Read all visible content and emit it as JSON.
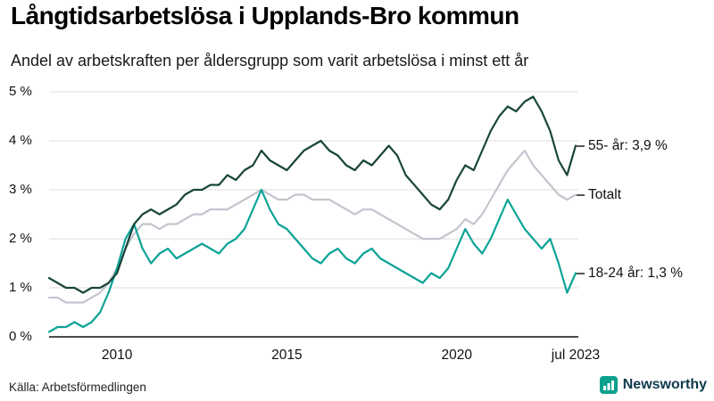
{
  "source": "Källa: Arbetsförmedlingen",
  "brand": {
    "name": "Newsworthy",
    "color": "#0ca08d",
    "text_color": "#0d3a4c"
  },
  "chart_data": {
    "type": "line",
    "title": "Långtidsarbetslösa i Upplands-Bro kommun",
    "subtitle": "Andel av arbetskraften per åldersgrupp som varit arbetslösa i minst ett år",
    "xlabel": "",
    "ylabel": "",
    "ylim": [
      0,
      5
    ],
    "xlim": [
      2008,
      2023.58
    ],
    "grid": "horizontal",
    "legend_position": "right-annotations",
    "y_ticks": [
      "0 %",
      "1 %",
      "2 %",
      "3 %",
      "4 %",
      "5 %"
    ],
    "x_ticks": [
      {
        "label": "2010",
        "x": 2010
      },
      {
        "label": "2015",
        "x": 2015
      },
      {
        "label": "2020",
        "x": 2020
      },
      {
        "label": "jul 2023",
        "x": 2023.5
      }
    ],
    "x": [
      2008,
      2008.25,
      2008.5,
      2008.75,
      2009,
      2009.25,
      2009.5,
      2009.75,
      2010,
      2010.25,
      2010.5,
      2010.75,
      2011,
      2011.25,
      2011.5,
      2011.75,
      2012,
      2012.25,
      2012.5,
      2012.75,
      2013,
      2013.25,
      2013.5,
      2013.75,
      2014,
      2014.25,
      2014.5,
      2014.75,
      2015,
      2015.25,
      2015.5,
      2015.75,
      2016,
      2016.25,
      2016.5,
      2016.75,
      2017,
      2017.25,
      2017.5,
      2017.75,
      2018,
      2018.25,
      2018.5,
      2018.75,
      2019,
      2019.25,
      2019.5,
      2019.75,
      2020,
      2020.25,
      2020.5,
      2020.75,
      2021,
      2021.25,
      2021.5,
      2021.75,
      2022,
      2022.25,
      2022.5,
      2022.75,
      2023,
      2023.25,
      2023.5
    ],
    "series": [
      {
        "name": "55- år",
        "label": "55- år: 3,9 %",
        "last_value_label": "3,9 %",
        "color": "#17453a",
        "values": [
          1.2,
          1.1,
          1.0,
          1.0,
          0.9,
          1.0,
          1.0,
          1.1,
          1.3,
          1.8,
          2.3,
          2.5,
          2.6,
          2.5,
          2.6,
          2.7,
          2.9,
          3.0,
          3.0,
          3.1,
          3.1,
          3.3,
          3.2,
          3.4,
          3.5,
          3.8,
          3.6,
          3.5,
          3.4,
          3.6,
          3.8,
          3.9,
          4.0,
          3.8,
          3.7,
          3.5,
          3.4,
          3.6,
          3.5,
          3.7,
          3.9,
          3.7,
          3.3,
          3.1,
          2.9,
          2.7,
          2.6,
          2.8,
          3.2,
          3.5,
          3.4,
          3.8,
          4.2,
          4.5,
          4.7,
          4.6,
          4.8,
          4.9,
          4.6,
          4.2,
          3.6,
          3.3,
          3.9
        ]
      },
      {
        "name": "Totalt",
        "label": "Totalt",
        "last_value_label": "",
        "color": "#c7c4cf",
        "values": [
          0.8,
          0.8,
          0.7,
          0.7,
          0.7,
          0.8,
          0.9,
          1.1,
          1.4,
          1.8,
          2.1,
          2.3,
          2.3,
          2.2,
          2.3,
          2.3,
          2.4,
          2.5,
          2.5,
          2.6,
          2.6,
          2.6,
          2.7,
          2.8,
          2.9,
          3.0,
          2.9,
          2.8,
          2.8,
          2.9,
          2.9,
          2.8,
          2.8,
          2.8,
          2.7,
          2.6,
          2.5,
          2.6,
          2.6,
          2.5,
          2.4,
          2.3,
          2.2,
          2.1,
          2.0,
          2.0,
          2.0,
          2.1,
          2.2,
          2.4,
          2.3,
          2.5,
          2.8,
          3.1,
          3.4,
          3.6,
          3.8,
          3.5,
          3.3,
          3.1,
          2.9,
          2.8,
          2.9
        ]
      },
      {
        "name": "18-24 år",
        "label": "18-24 år: 1,3 %",
        "last_value_label": "1,3 %",
        "color": "#0aa396",
        "values": [
          0.1,
          0.2,
          0.2,
          0.3,
          0.2,
          0.3,
          0.5,
          0.9,
          1.4,
          2.0,
          2.3,
          1.8,
          1.5,
          1.7,
          1.8,
          1.6,
          1.7,
          1.8,
          1.9,
          1.8,
          1.7,
          1.9,
          2.0,
          2.2,
          2.6,
          3.0,
          2.6,
          2.3,
          2.2,
          2.0,
          1.8,
          1.6,
          1.5,
          1.7,
          1.8,
          1.6,
          1.5,
          1.7,
          1.8,
          1.6,
          1.5,
          1.4,
          1.3,
          1.2,
          1.1,
          1.3,
          1.2,
          1.4,
          1.8,
          2.2,
          1.9,
          1.7,
          2.0,
          2.4,
          2.8,
          2.5,
          2.2,
          2.0,
          1.8,
          2.0,
          1.5,
          0.9,
          1.3
        ]
      }
    ]
  }
}
